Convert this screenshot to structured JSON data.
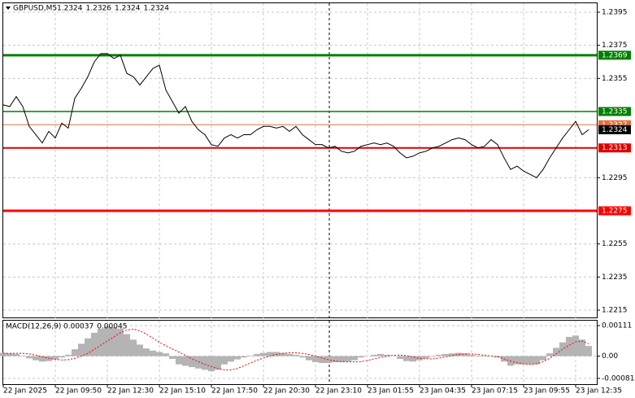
{
  "chart_data": [
    {
      "type": "line",
      "title": "GBPUSD,M5",
      "quote": [
        1.2324,
        1.2326,
        1.2324,
        1.2324
      ],
      "color": "#000000",
      "values": [
        1.2339,
        1.2338,
        1.2344,
        1.2338,
        1.2326,
        1.2321,
        1.2316,
        1.2323,
        1.2319,
        1.2328,
        1.2325,
        1.2343,
        1.2349,
        1.2356,
        1.2365,
        1.237,
        1.237,
        1.2367,
        1.2369,
        1.2358,
        1.2356,
        1.2351,
        1.2356,
        1.2361,
        1.2363,
        1.2348,
        1.2341,
        1.2334,
        1.2338,
        1.2329,
        1.2324,
        1.2321,
        1.2315,
        1.2314,
        1.2319,
        1.2321,
        1.2319,
        1.2321,
        1.2321,
        1.2324,
        1.2326,
        1.2326,
        1.2325,
        1.2326,
        1.2323,
        1.2326,
        1.2321,
        1.2318,
        1.2315,
        1.2315,
        1.2313,
        1.2314,
        1.2311,
        1.231,
        1.2311,
        1.2314,
        1.2315,
        1.2316,
        1.2315,
        1.2316,
        1.2314,
        1.231,
        1.2307,
        1.2308,
        1.231,
        1.2311,
        1.2313,
        1.2314,
        1.2316,
        1.2318,
        1.2319,
        1.2318,
        1.2315,
        1.2313,
        1.2314,
        1.2318,
        1.2315,
        1.2307,
        1.23,
        1.2302,
        1.2299,
        1.2297,
        1.2295,
        1.23,
        1.2307,
        1.2313,
        1.2319,
        1.2324,
        1.2329,
        1.2321,
        1.2324
      ],
      "ylim": [
        1.22106,
        1.24004
      ],
      "yticks": [
        1.2395,
        1.2375,
        1.2355,
        1.2295,
        1.2255,
        1.2235,
        1.2215
      ],
      "grid": true,
      "x_labels": [
        "22 Jan 2025",
        "22 Jan 09:50",
        "22 Jan 12:30",
        "22 Jan 15:10",
        "22 Jan 17:50",
        "22 Jan 20:30",
        "22 Jan 23:10",
        "23 Jan 01:55",
        "23 Jan 04:35",
        "23 Jan 07:15",
        "23 Jan 09:55",
        "23 Jan 12:35"
      ],
      "levels": [
        {
          "value": 1.2369,
          "color": "#008000",
          "width": 3
        },
        {
          "value": 1.2335,
          "color": "#008000",
          "width": 1.5
        },
        {
          "value": 1.2327,
          "color": "#e0703a",
          "width": 1
        },
        {
          "value": 1.2313,
          "color": "#e00000",
          "width": 2
        },
        {
          "value": 1.2275,
          "color": "#ff0000",
          "width": 3
        }
      ],
      "last_price": {
        "value": 1.2324,
        "color": "#000000"
      }
    },
    {
      "type": "macd",
      "title": "MACD(12,26,9)",
      "title_values": [
        0.00037,
        0.00045
      ],
      "ylim": [
        -0.00102,
        0.00129
      ],
      "yticks": [
        0.00111,
        {
          "value": 0,
          "label": "0.00"
        },
        -0.00081
      ],
      "histogram": {
        "color": "#b4b4b4",
        "values": [
          0.00012,
          0.0001,
          8e-05,
          2e-05,
          -8e-05,
          -0.00015,
          -0.0002,
          -0.00018,
          -0.00012,
          -5e-05,
          5e-05,
          0.00025,
          0.00045,
          0.00065,
          0.00085,
          0.001,
          0.00108,
          0.00105,
          0.001,
          0.0008,
          0.0006,
          0.00042,
          0.00028,
          0.0002,
          0.00015,
          0.0001,
          -0.0001,
          -0.0003,
          -0.00035,
          -0.0004,
          -0.00045,
          -0.0005,
          -0.00055,
          -0.0005,
          -0.0003,
          -0.0002,
          -0.00012,
          -5e-05,
          2e-05,
          8e-05,
          0.00012,
          0.00015,
          0.00015,
          0.00012,
          8e-05,
          5e-05,
          -5e-05,
          -0.00015,
          -0.00022,
          -0.00025,
          -0.00025,
          -0.00022,
          -0.00022,
          -0.0002,
          -0.00015,
          -5e-05,
          0,
          5e-05,
          8e-05,
          5e-05,
          0,
          -0.0001,
          -0.00018,
          -0.0002,
          -0.00015,
          -8e-05,
          -2e-05,
          5e-05,
          8e-05,
          0.0001,
          0.00012,
          0.0001,
          5e-05,
          -2e-05,
          -2e-05,
          0,
          -5e-05,
          -0.0002,
          -0.00035,
          -0.0003,
          -0.0003,
          -0.0003,
          -0.0003,
          -0.00015,
          0.0001,
          0.0003,
          0.0005,
          0.0007,
          0.00075,
          0.0006,
          0.00037
        ]
      },
      "signal": {
        "color": "#ff0000",
        "values": [
          0.0001,
          0.0001,
          0.0001,
          0.0001,
          8e-05,
          4e-05,
          -2e-05,
          -8e-05,
          -0.00012,
          -0.00014,
          -0.00013,
          -8e-05,
          0,
          0.0001,
          0.00025,
          0.0004,
          0.00055,
          0.0007,
          0.00085,
          0.00095,
          0.00098,
          0.00092,
          0.0008,
          0.00066,
          0.0005,
          0.00038,
          0.00026,
          0.00015,
          3e-05,
          -0.0001,
          -0.0002,
          -0.0003,
          -0.00038,
          -0.00045,
          -0.0005,
          -0.0005,
          -0.00045,
          -0.00035,
          -0.00025,
          -0.00015,
          -7e-05,
          0,
          6e-05,
          0.0001,
          0.00012,
          0.00012,
          0.0001,
          6e-05,
          0,
          -7e-05,
          -0.00013,
          -0.00018,
          -0.0002,
          -0.00021,
          -0.00021,
          -0.0002,
          -0.00016,
          -0.0001,
          -5e-05,
          0,
          3e-05,
          4e-05,
          2e-05,
          -3e-05,
          -8e-05,
          -0.0001,
          -0.0001,
          -7e-05,
          -3e-05,
          2e-05,
          6e-05,
          8e-05,
          8e-05,
          6e-05,
          3e-05,
          0,
          -2e-05,
          -0.0001,
          -0.00018,
          -0.00024,
          -0.00028,
          -0.0003,
          -0.00028,
          -0.0002,
          -8e-05,
          8e-05,
          0.00025,
          0.0004,
          0.00052,
          0.00055,
          0.00045
        ]
      }
    }
  ]
}
